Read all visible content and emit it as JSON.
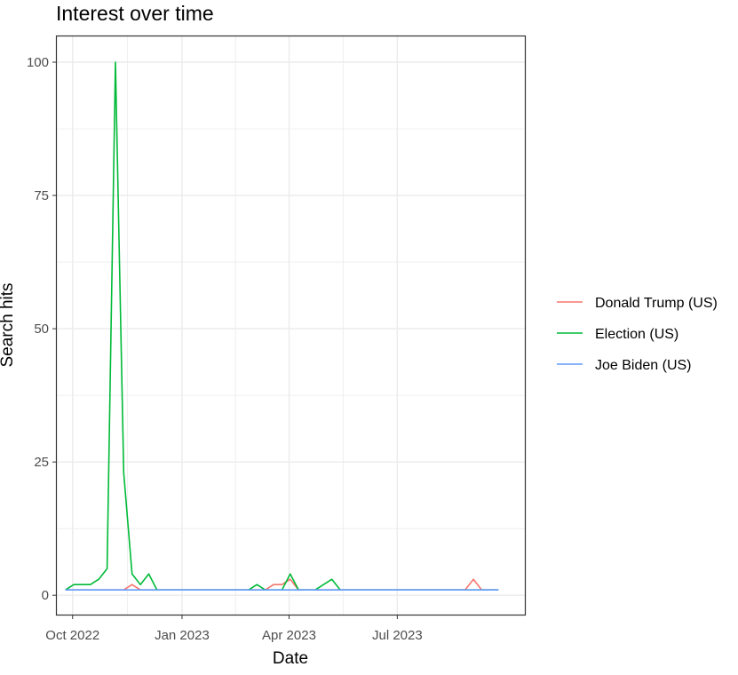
{
  "chart_data": {
    "type": "line",
    "title": "Interest over time",
    "xlabel": "Date",
    "ylabel": "Search hits",
    "x_range": [
      "2022-09-17",
      "2023-10-17"
    ],
    "ylim": [
      -3.8,
      105
    ],
    "x_ticks": [
      {
        "date": "2022-10-01",
        "label": "Oct 2022"
      },
      {
        "date": "2023-01-01",
        "label": "Jan 2023"
      },
      {
        "date": "2023-04-01",
        "label": "Apr 2023"
      },
      {
        "date": "2023-07-01",
        "label": "Jul 2023"
      }
    ],
    "y_ticks": [
      0,
      25,
      50,
      75,
      100
    ],
    "grid": true,
    "legend_position": "right",
    "series": [
      {
        "name": "Donald Trump (US)",
        "color": "#F8766D",
        "points": [
          [
            "2022-09-25",
            1
          ],
          [
            "2022-11-13",
            1
          ],
          [
            "2022-11-20",
            2
          ],
          [
            "2022-11-27",
            1
          ],
          [
            "2023-03-12",
            1
          ],
          [
            "2023-03-19",
            2
          ],
          [
            "2023-03-26",
            2
          ],
          [
            "2023-04-02",
            3
          ],
          [
            "2023-04-09",
            1
          ],
          [
            "2023-08-27",
            1
          ],
          [
            "2023-09-03",
            3
          ],
          [
            "2023-09-10",
            1
          ],
          [
            "2023-09-24",
            1
          ]
        ]
      },
      {
        "name": "Election (US)",
        "color": "#00BA38",
        "points": [
          [
            "2022-09-25",
            1
          ],
          [
            "2022-10-02",
            2
          ],
          [
            "2022-10-09",
            2
          ],
          [
            "2022-10-16",
            2
          ],
          [
            "2022-10-23",
            3
          ],
          [
            "2022-10-30",
            5
          ],
          [
            "2022-11-06",
            100
          ],
          [
            "2022-11-13",
            23
          ],
          [
            "2022-11-20",
            4
          ],
          [
            "2022-11-27",
            2
          ],
          [
            "2022-12-04",
            4
          ],
          [
            "2022-12-11",
            1
          ],
          [
            "2023-02-26",
            1
          ],
          [
            "2023-03-05",
            2
          ],
          [
            "2023-03-12",
            1
          ],
          [
            "2023-03-26",
            1
          ],
          [
            "2023-04-02",
            4
          ],
          [
            "2023-04-09",
            1
          ],
          [
            "2023-04-23",
            1
          ],
          [
            "2023-04-30",
            2
          ],
          [
            "2023-05-07",
            3
          ],
          [
            "2023-05-14",
            1
          ],
          [
            "2023-09-24",
            1
          ]
        ]
      },
      {
        "name": "Joe Biden (US)",
        "color": "#619CFF",
        "points": [
          [
            "2022-09-25",
            1
          ],
          [
            "2023-09-24",
            1
          ]
        ]
      }
    ]
  }
}
